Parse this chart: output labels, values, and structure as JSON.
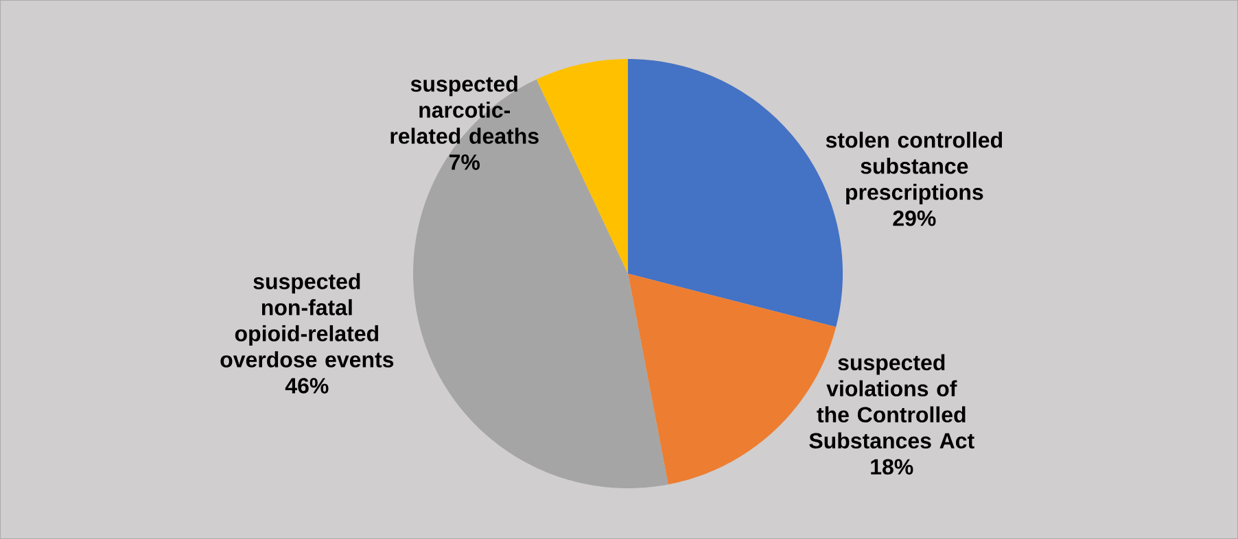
{
  "chart_data": {
    "type": "pie",
    "categories": [
      "stolen controlled substance prescriptions",
      "suspected violations of the Controlled Substances Act",
      "suspected non-fatal opioid-related overdose events",
      "suspected narcotic-related deaths"
    ],
    "values": [
      29,
      18,
      46,
      7
    ],
    "colors": [
      "#4472c4",
      "#ed7d31",
      "#a5a5a5",
      "#ffc000"
    ],
    "value_labels": [
      "29%",
      "18%",
      "46%",
      "7%"
    ]
  }
}
